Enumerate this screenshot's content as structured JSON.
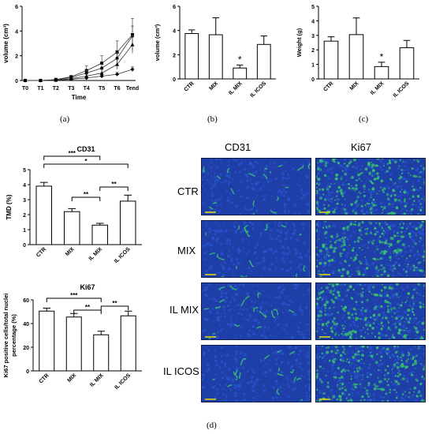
{
  "captions": {
    "a": "(a)",
    "b": "(b)",
    "c": "(c)",
    "d": "(d)"
  },
  "chart_data": [
    {
      "id": "a",
      "type": "line",
      "title": "",
      "xlabel": "Time",
      "ylabel": "volume (cm³)",
      "categories": [
        "T0",
        "T1",
        "T2",
        "T3",
        "T4",
        "T5",
        "T6",
        "Tend"
      ],
      "ylim": [
        0,
        6
      ],
      "yticks": [
        "0",
        "2",
        "4",
        "6"
      ],
      "series": [
        {
          "values": [
            0,
            0,
            0.08,
            0.3,
            0.8,
            1.4,
            2.3,
            3.7
          ],
          "errors": [
            0,
            0,
            0.05,
            0.1,
            0.4,
            0.6,
            0.9,
            1.3
          ]
        },
        {
          "values": [
            0,
            0,
            0.05,
            0.25,
            0.6,
            1.0,
            1.8,
            3.6
          ],
          "errors": [
            0,
            0,
            0.05,
            0.1,
            0.2,
            0.3,
            0.5,
            0.8
          ]
        },
        {
          "values": [
            0,
            0,
            0.03,
            0.15,
            0.35,
            0.6,
            1.3,
            2.9
          ],
          "errors": [
            0,
            0,
            0.03,
            0.05,
            0.15,
            0.3,
            0.4,
            0.7
          ]
        },
        {
          "values": [
            0,
            0,
            0.02,
            0.1,
            0.2,
            0.35,
            0.5,
            0.9
          ],
          "errors": [
            0,
            0,
            0.02,
            0.05,
            0.05,
            0.1,
            0.15,
            0.2
          ]
        }
      ]
    },
    {
      "id": "b",
      "type": "bar",
      "title": "",
      "xlabel": "",
      "ylabel": "volume (cm³)",
      "categories": [
        "CTR",
        "MIX",
        "IL MIX",
        "IL ICOS"
      ],
      "values": [
        3.75,
        3.65,
        0.9,
        2.85
      ],
      "errors": [
        0.3,
        1.4,
        0.25,
        0.7
      ],
      "ylim": [
        0,
        6
      ],
      "yticks": [
        "0",
        "2",
        "4",
        "6"
      ],
      "annotations": [
        {
          "category": "IL MIX",
          "text": "*"
        }
      ]
    },
    {
      "id": "c",
      "type": "bar",
      "title": "",
      "xlabel": "",
      "ylabel": "Weight (g)",
      "categories": [
        "CTR",
        "MIX",
        "IL MIX",
        "IL ICOS"
      ],
      "values": [
        2.6,
        3.05,
        0.85,
        2.15
      ],
      "errors": [
        0.3,
        1.15,
        0.3,
        0.5
      ],
      "ylim": [
        0,
        5
      ],
      "yticks": [
        "0",
        "1",
        "2",
        "3",
        "4",
        "5"
      ],
      "annotations": [
        {
          "category": "IL MIX",
          "text": "*"
        }
      ]
    },
    {
      "id": "d-cd31",
      "type": "bar",
      "title": "CD31",
      "xlabel": "",
      "ylabel": "TMD (%)",
      "categories": [
        "CTR",
        "MIX",
        "IL MIX",
        "IL ICOS"
      ],
      "values": [
        3.9,
        2.2,
        1.3,
        2.9
      ],
      "errors": [
        0.25,
        0.2,
        0.12,
        0.4
      ],
      "ylim": [
        0,
        5
      ],
      "yticks": [
        "0",
        "1",
        "2",
        "3",
        "4",
        "5"
      ],
      "brackets": [
        {
          "from": 0,
          "to": 2,
          "text": "***",
          "level": 0
        },
        {
          "from": 0,
          "to": 3,
          "text": "*",
          "level": 1
        },
        {
          "from": 1,
          "to": 2,
          "text": "**",
          "level": 2
        },
        {
          "from": 2,
          "to": 3,
          "text": "**",
          "level": 2
        }
      ]
    },
    {
      "id": "d-ki67",
      "type": "bar",
      "title": "Ki67",
      "xlabel": "",
      "ylabel": "Ki67 positive cells/total nuclei percentage (%)",
      "categories": [
        "CTR",
        "MIX",
        "IL MIX",
        "IL ICOS"
      ],
      "values": [
        50.5,
        45.5,
        30.5,
        46.5
      ],
      "errors": [
        2.5,
        3.0,
        3.0,
        4.0
      ],
      "ylim": [
        0,
        60
      ],
      "yticks": [
        "0",
        "20",
        "40",
        "60"
      ],
      "brackets": [
        {
          "from": 0,
          "to": 2,
          "text": "***",
          "level": 0
        },
        {
          "from": 1,
          "to": 2,
          "text": "**",
          "level": 1
        },
        {
          "from": 2,
          "to": 3,
          "text": "**",
          "level": 1
        }
      ]
    }
  ],
  "micrographs": {
    "columns": [
      "CD31",
      "Ki67"
    ],
    "rows": [
      "CTR",
      "MIX",
      "IL MIX",
      "IL ICOS"
    ],
    "colors": {
      "background": "#1f3fa8",
      "stain": "#39c46e",
      "scale_bar": "#e8e000"
    }
  }
}
